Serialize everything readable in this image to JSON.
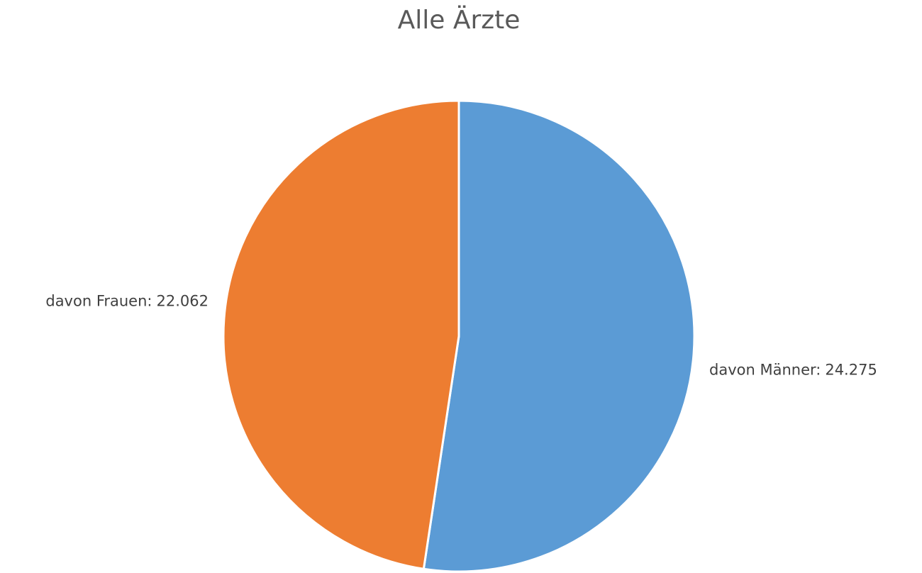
{
  "chart_data": {
    "type": "pie",
    "title": "Alle Ärzte",
    "categories": [
      "davon Männer:",
      "davon Frauen:"
    ],
    "values": [
      24275,
      22062
    ],
    "value_labels": [
      "24.275",
      "22.062"
    ],
    "colors": [
      "#5b9bd5",
      "#ed7d31"
    ]
  }
}
